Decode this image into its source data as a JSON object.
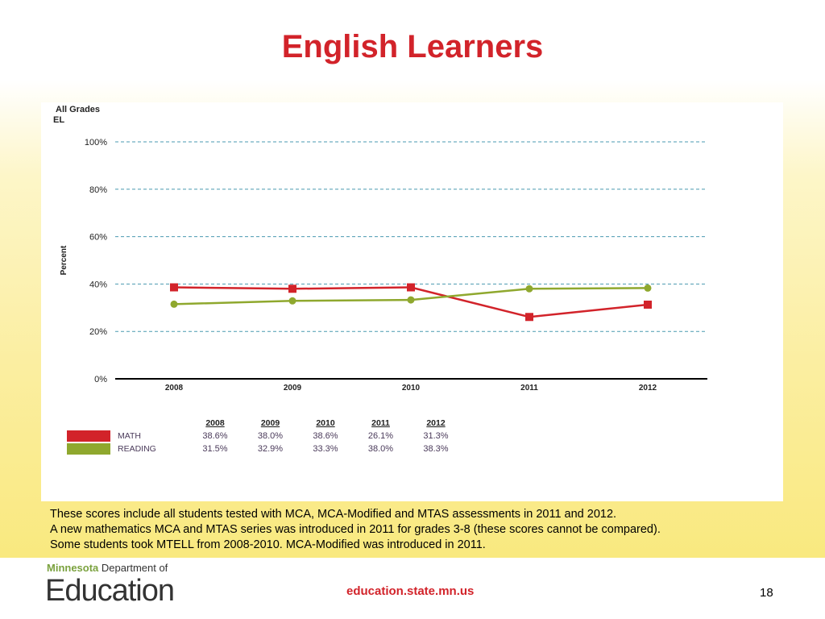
{
  "slide": {
    "title": "English Learners",
    "notes": [
      "These scores include all students tested with MCA, MCA-Modified and MTAS assessments in 2011 and 2012.",
      "A new mathematics MCA and MTAS series was introduced in 2011 for grades 3-8 (these scores cannot be compared).",
      "Some students took MTELL from 2008-2010.  MCA-Modified was introduced in 2011."
    ],
    "logo_top_bold": "Minnesota",
    "logo_top": "Department of",
    "logo_main": "Education",
    "url": "education.state.mn.us",
    "page_number": "18"
  },
  "chart_data": {
    "type": "line",
    "subtitle_line1": "All Grades",
    "subtitle_line2": "EL",
    "ylabel": "Percent",
    "ylim": [
      0,
      100
    ],
    "yticks": [
      "0%",
      "20%",
      "40%",
      "60%",
      "80%",
      "100%"
    ],
    "categories": [
      "2008",
      "2009",
      "2010",
      "2011",
      "2012"
    ],
    "grid": true,
    "series": [
      {
        "name": "MATH",
        "color": "#d2232a",
        "marker": "square",
        "values": [
          38.6,
          38.0,
          38.6,
          26.1,
          31.3
        ],
        "labels": [
          "38.6%",
          "38.0%",
          "38.6%",
          "26.1%",
          "31.3%"
        ]
      },
      {
        "name": "READING",
        "color": "#8fa82e",
        "marker": "circle",
        "values": [
          31.5,
          32.9,
          33.3,
          38.0,
          38.3
        ],
        "labels": [
          "31.5%",
          "32.9%",
          "33.3%",
          "38.0%",
          "38.3%"
        ]
      }
    ]
  }
}
